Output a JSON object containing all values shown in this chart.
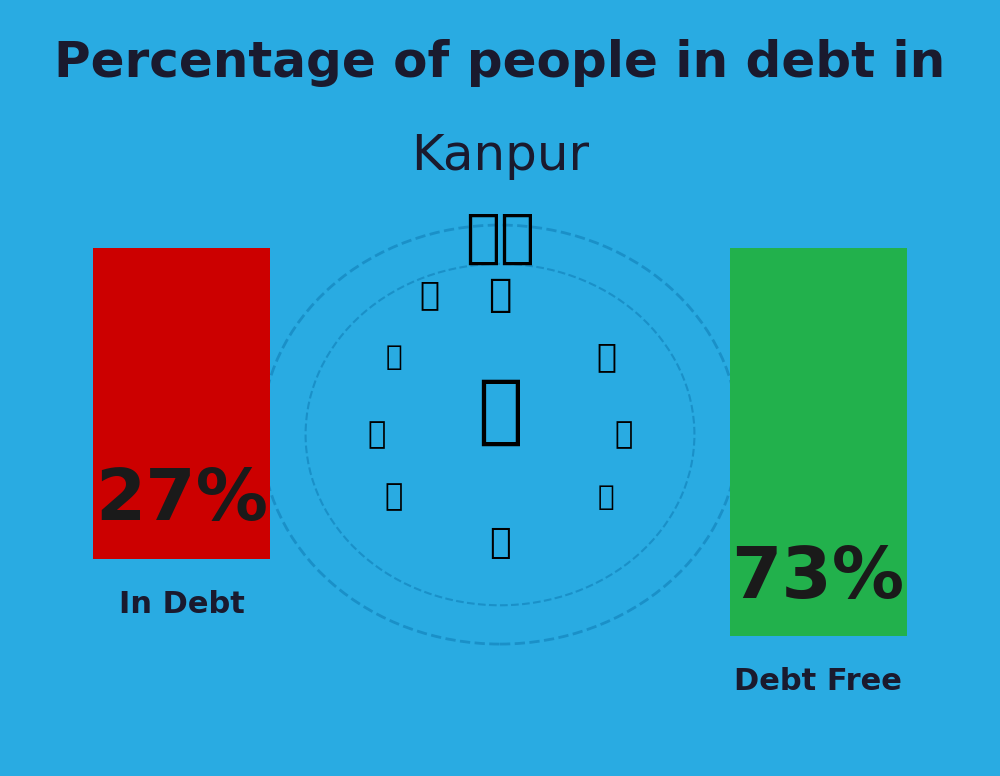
{
  "title_line1": "Percentage of people in debt in",
  "title_line2": "Kanpur",
  "background_color": "#29ABE2",
  "bar1_value": 27,
  "bar1_label": "27%",
  "bar1_category": "In Debt",
  "bar1_color": "#CC0000",
  "bar2_value": 73,
  "bar2_label": "73%",
  "bar2_category": "Debt Free",
  "bar2_color": "#22B14C",
  "title_color": "#1a1a2e",
  "label_color": "#1a1a2e",
  "title_fontsize": 36,
  "subtitle_fontsize": 36,
  "bar_label_fontsize": 52,
  "category_fontsize": 22,
  "flag_emoji": "🇮🇳"
}
